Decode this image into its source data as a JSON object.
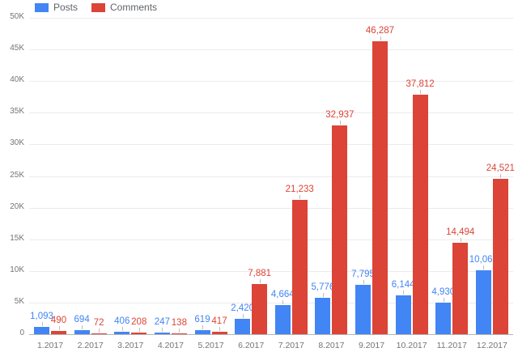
{
  "chart_data": {
    "type": "bar",
    "title": "",
    "xlabel": "",
    "ylabel": "",
    "categories": [
      "1.2017",
      "2.2017",
      "3.2017",
      "4.2017",
      "5.2017",
      "6.2017",
      "7.2017",
      "8.2017",
      "9.2017",
      "10.2017",
      "11.2017",
      "12.2017"
    ],
    "series": [
      {
        "name": "Posts",
        "color": "#4285f4",
        "values": [
          1093,
          694,
          406,
          247,
          619,
          2420,
          4664,
          5776,
          7795,
          6144,
          4930,
          10067
        ]
      },
      {
        "name": "Comments",
        "color": "#db4437",
        "values": [
          490,
          72,
          208,
          138,
          417,
          7881,
          21233,
          32937,
          46287,
          37812,
          14494,
          24521
        ]
      }
    ],
    "value_labels": [
      [
        "1,093",
        "694",
        "406",
        "247",
        "619",
        "2,420",
        "4,664",
        "5,776",
        "7,795",
        "6,144",
        "4,930",
        "10,067"
      ],
      [
        "490",
        "72",
        "208",
        "138",
        "417",
        "7,881",
        "21,233",
        "32,937",
        "46,287",
        "37,812",
        "14,494",
        "24,521"
      ]
    ],
    "y_axis": {
      "min": 0,
      "max": 50000,
      "tick_step": 5000,
      "tick_labels": [
        "0",
        "5K",
        "10K",
        "15K",
        "20K",
        "25K",
        "30K",
        "35K",
        "40K",
        "45K",
        "50K"
      ]
    },
    "grid": true,
    "legend_position": "top"
  },
  "styles": {
    "gridline_color": "#ebebeb",
    "baseline_color": "#b6b6b6",
    "axis_label_color": "#757575",
    "legend_text_color": "#5f6368",
    "annotation_stem_color": "#bdbdbd",
    "posts_color": "#4285f4",
    "comments_color": "#db4437"
  }
}
